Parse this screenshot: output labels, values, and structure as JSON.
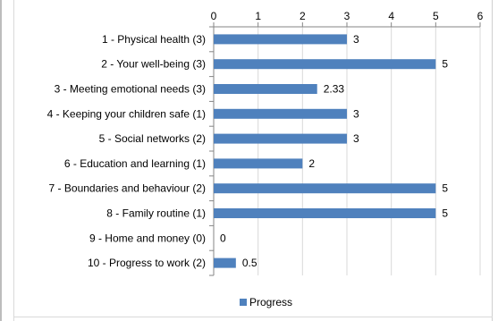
{
  "chart_data": {
    "type": "bar",
    "orientation": "horizontal",
    "categories": [
      "1 - Physical health (3)",
      "2 - Your well-being (3)",
      "3 - Meeting emotional needs (3)",
      "4 - Keeping your children safe (1)",
      "5 - Social networks (2)",
      "6 - Education and learning (1)",
      "7 - Boundaries and behaviour (2)",
      "8 - Family routine (1)",
      "9 - Home and money (0)",
      "10 - Progress to work (2)"
    ],
    "series": [
      {
        "name": "Progress",
        "values": [
          3,
          5,
          2.33,
          3,
          3,
          2,
          5,
          5,
          0,
          0.5
        ],
        "labels": [
          "3",
          "5",
          "2.33",
          "3",
          "3",
          "2",
          "5",
          "5",
          "0",
          "0.5"
        ],
        "color": "#4f81bd"
      }
    ],
    "xlim": [
      0,
      6
    ],
    "xticks": [
      "0",
      "1",
      "2",
      "3",
      "4",
      "5",
      "6"
    ],
    "x_axis_position": "top",
    "grid": true,
    "legend": "bottom"
  }
}
